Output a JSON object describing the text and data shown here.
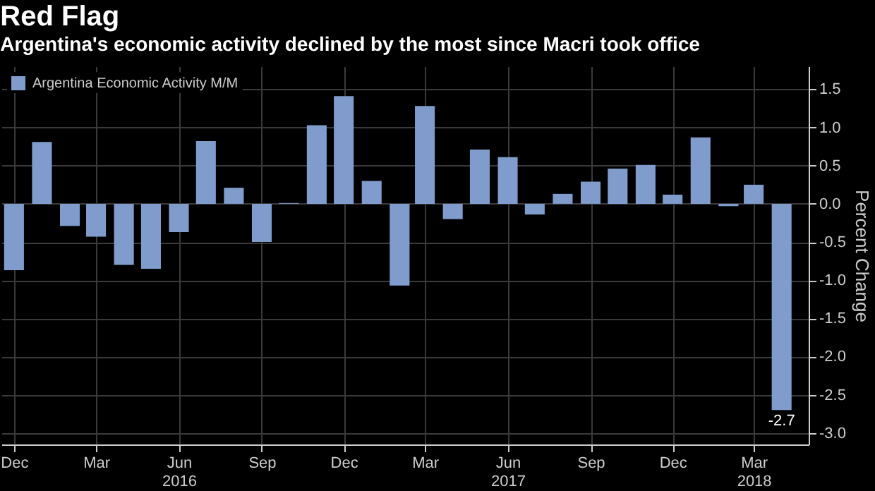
{
  "chart_data": {
    "type": "bar",
    "title": "Red Flag",
    "subtitle": "Argentina's economic activity declined by the most since Macri took office",
    "ylabel": "Percent Change",
    "x": [
      "2015-12",
      "2016-01",
      "2016-02",
      "2016-03",
      "2016-04",
      "2016-05",
      "2016-06",
      "2016-07",
      "2016-08",
      "2016-09",
      "2016-10",
      "2016-11",
      "2016-12",
      "2017-01",
      "2017-02",
      "2017-03",
      "2017-04",
      "2017-05",
      "2017-06",
      "2017-07",
      "2017-08",
      "2017-09",
      "2017-10",
      "2017-11",
      "2017-12",
      "2018-01",
      "2018-02",
      "2018-03",
      "2018-04"
    ],
    "series": [
      {
        "name": "Argentina Economic Activity M/M",
        "color": "#7f9ccc",
        "values": [
          -0.87,
          0.81,
          -0.29,
          -0.43,
          -0.8,
          -0.85,
          -0.37,
          0.82,
          0.21,
          -0.5,
          0.01,
          1.03,
          1.41,
          0.3,
          -1.07,
          1.28,
          -0.2,
          0.71,
          0.61,
          -0.14,
          0.13,
          0.29,
          0.46,
          0.51,
          0.12,
          0.87,
          -0.03,
          0.25,
          -2.7
        ],
        "value_labels": [
          null,
          null,
          null,
          null,
          null,
          null,
          null,
          null,
          null,
          null,
          null,
          null,
          null,
          null,
          null,
          null,
          null,
          null,
          null,
          null,
          null,
          null,
          null,
          null,
          null,
          null,
          null,
          null,
          "-2.7"
        ]
      }
    ],
    "xlim": [
      "2015-11-17",
      "2018-05-01"
    ],
    "xticks": [
      {
        "value": "2015-12-01",
        "label": "Dec"
      },
      {
        "value": "2016-03-01",
        "label": "Mar"
      },
      {
        "value": "2016-06-01",
        "label": "Jun\n2016"
      },
      {
        "value": "2016-09-01",
        "label": "Sep"
      },
      {
        "value": "2016-12-01",
        "label": "Dec"
      },
      {
        "value": "2017-03-01",
        "label": "Mar"
      },
      {
        "value": "2017-06-01",
        "label": "Jun\n2017"
      },
      {
        "value": "2017-09-01",
        "label": "Sep"
      },
      {
        "value": "2017-12-01",
        "label": "Dec"
      },
      {
        "value": "2018-03-01",
        "label": "Mar\n2018"
      }
    ],
    "ylim": [
      -3.15,
      1.8
    ],
    "yticks": [
      {
        "value": 1.5,
        "label": "1.5"
      },
      {
        "value": 1,
        "label": "1.0"
      },
      {
        "value": 0.5,
        "label": "0.5"
      },
      {
        "value": 0,
        "label": "0.0"
      },
      {
        "value": -0.5,
        "label": "-0.5"
      },
      {
        "value": -1,
        "label": "-1.0"
      },
      {
        "value": -1.5,
        "label": "-1.5"
      },
      {
        "value": -2,
        "label": "-2.0"
      },
      {
        "value": -2.5,
        "label": "-2.5"
      },
      {
        "value": -3,
        "label": "-3.0"
      }
    ],
    "grid": true,
    "legend": "top left"
  }
}
